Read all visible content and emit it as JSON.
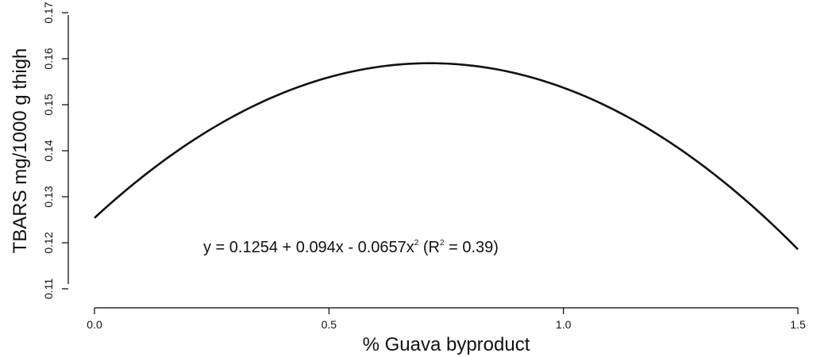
{
  "chart_data": {
    "type": "line",
    "xlabel": "% Guava byproduct",
    "ylabel": "TBARS mg/1000 g thigh",
    "xlim": [
      0.0,
      1.5
    ],
    "ylim": [
      0.11,
      0.17
    ],
    "x_ticks": [
      "0.0",
      "0.5",
      "1.0",
      "1.5"
    ],
    "y_ticks": [
      "0.11",
      "0.12",
      "0.13",
      "0.14",
      "0.15",
      "0.16",
      "0.17"
    ],
    "x_tick_values": [
      0.0,
      0.5,
      1.0,
      1.5
    ],
    "y_tick_values": [
      0.11,
      0.12,
      0.13,
      0.14,
      0.15,
      0.16,
      0.17
    ],
    "grid": false,
    "equation": {
      "intercept": 0.1254,
      "linear": 0.094,
      "quadratic": -0.0657,
      "r_squared": 0.39,
      "text_main": "y = 0.1254 + 0.094x - 0.0657x",
      "text_sup": "2",
      "text_mid": " (R",
      "text_sup2": "2",
      "text_end": " = 0.39)"
    }
  }
}
